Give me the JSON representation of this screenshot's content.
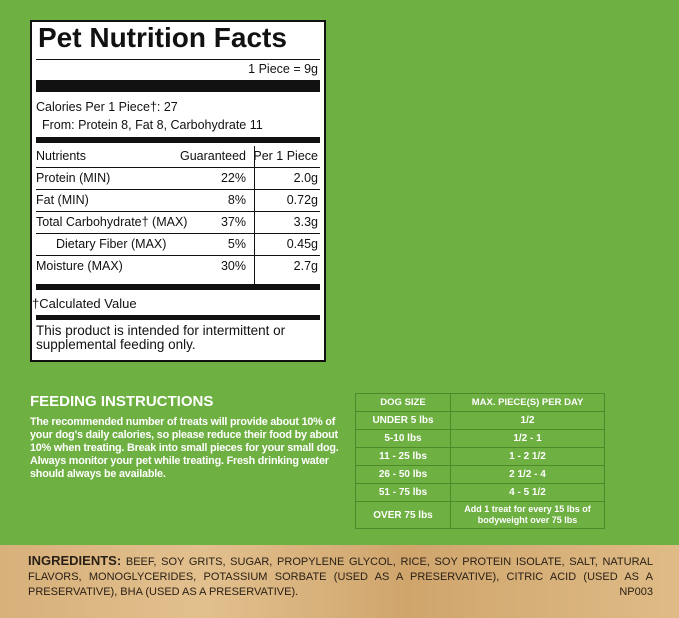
{
  "nutrition": {
    "title": "Pet Nutrition Facts",
    "serving": "1 Piece = 9g",
    "calories": "Calories Per 1 Piece†: 27",
    "from": "From: Protein 8, Fat 8, Carbohydrate 11",
    "header": [
      "Nutrients",
      "Guaranteed",
      "Per 1 Piece"
    ],
    "rows": [
      [
        "Protein (MIN)",
        "22%",
        "2.0g"
      ],
      [
        "Fat (MIN)",
        "8%",
        "0.72g"
      ],
      [
        "Total Carbohydrate† (MAX)",
        "37%",
        "3.3g"
      ],
      [
        "Dietary Fiber (MAX)",
        "5%",
        "0.45g"
      ],
      [
        "Moisture (MAX)",
        "30%",
        "2.7g"
      ]
    ],
    "footnote": "†Calculated Value",
    "note": "This product is intended for intermittent or supplemental feeding only."
  },
  "feeding": {
    "title": "FEEDING INSTRUCTIONS",
    "text": "The recommended number of treats will provide about 10% of your dog's daily calories, so please reduce their food by about 10% when treating. Break into small pieces for your small dog. Always monitor your pet while treating. Fresh drinking water should always be available."
  },
  "dosage_table": {
    "header": [
      "DOG SIZE",
      "MAX. PIECE(S) PER DAY"
    ],
    "rows": [
      [
        "UNDER 5 lbs",
        "1/2"
      ],
      [
        "5-10 lbs",
        "1/2 - 1"
      ],
      [
        "11 - 25 lbs",
        "1 - 2 1/2"
      ],
      [
        "26 - 50 lbs",
        "2 1/2 - 4"
      ],
      [
        "51 - 75 lbs",
        "4 - 5 1/2"
      ],
      [
        "OVER 75 lbs",
        "Add 1 treat for every 15 lbs of bodyweight over 75 lbs"
      ]
    ]
  },
  "ingredients": {
    "label": "INGREDIENTS:",
    "text": "BEEF, SOY GRITS, SUGAR, PROPYLENE GLYCOL, RICE, SOY PROTEIN ISOLATE, SALT, NATURAL FLAVORS, MONOGLYCERIDES, POTASSIUM SORBATE (USED AS A PRESERVATIVE), CITRIC ACID (USED AS A PRESERVATIVE), BHA (USED AS A PRESERVATIVE).",
    "code": "NP003"
  }
}
